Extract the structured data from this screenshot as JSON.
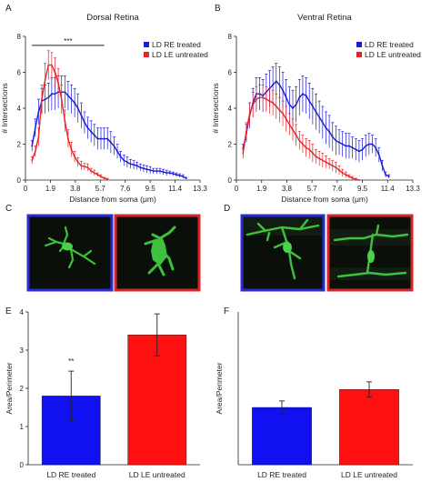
{
  "panels": {
    "A": "A",
    "B": "B",
    "C": "C",
    "D": "D",
    "E": "E",
    "F": "F"
  },
  "colors": {
    "blue": "#1a1adb",
    "red": "#e8242a",
    "blue_bar": "#1010f0",
    "red_bar": "#ff1010",
    "micro_bg": "#0a0f0a",
    "micro_cell": "#3ec23e"
  },
  "chart_data": [
    {
      "id": "A",
      "type": "line",
      "title": "Dorsal Retina",
      "xlabel": "Distance from soma (μm)",
      "ylabel": "# Intersections",
      "xlim": [
        0,
        13.3
      ],
      "ylim": [
        0,
        8
      ],
      "xticks": [
        "0",
        "1.9",
        "3.8",
        "5.7",
        "7.6",
        "9.5",
        "11.4",
        "13.3"
      ],
      "yticks": [
        "0",
        "2",
        "4",
        "6",
        "8"
      ],
      "legend_position": "top-right",
      "significance": {
        "label": "***",
        "x_start": 0.5,
        "x_end": 6.0,
        "y": 7.5
      },
      "series": [
        {
          "name": "LD RE treated",
          "color": "blue",
          "x": [
            0.5,
            0.75,
            1.0,
            1.25,
            1.5,
            1.75,
            2.0,
            2.25,
            2.5,
            2.75,
            3.0,
            3.25,
            3.5,
            3.75,
            4.0,
            4.25,
            4.5,
            4.75,
            5.0,
            5.25,
            5.5,
            5.75,
            6.0,
            6.25,
            6.5,
            6.75,
            7.0,
            7.25,
            7.5,
            7.75,
            8.0,
            8.25,
            8.5,
            8.75,
            9.0,
            9.25,
            9.5,
            9.75,
            10.0,
            10.25,
            10.5,
            10.75,
            11.0,
            11.25,
            11.5,
            11.75,
            12.0,
            12.25
          ],
          "values": [
            1.9,
            2.9,
            3.8,
            4.4,
            4.5,
            4.6,
            4.8,
            4.8,
            4.9,
            4.9,
            4.9,
            4.7,
            4.5,
            4.3,
            4.0,
            3.6,
            3.2,
            2.9,
            2.7,
            2.5,
            2.3,
            2.3,
            2.3,
            2.3,
            2.1,
            1.9,
            1.6,
            1.3,
            1.1,
            1.0,
            0.9,
            0.85,
            0.8,
            0.7,
            0.65,
            0.6,
            0.55,
            0.5,
            0.5,
            0.5,
            0.45,
            0.4,
            0.4,
            0.35,
            0.3,
            0.25,
            0.2,
            0.1
          ],
          "error": [
            0.3,
            0.5,
            0.7,
            0.7,
            0.8,
            0.8,
            0.9,
            0.9,
            0.9,
            0.9,
            0.9,
            0.8,
            0.8,
            0.8,
            0.8,
            0.7,
            0.6,
            0.6,
            0.6,
            0.6,
            0.6,
            0.6,
            0.6,
            0.6,
            0.6,
            0.5,
            0.4,
            0.3,
            0.3,
            0.3,
            0.25,
            0.25,
            0.2,
            0.2,
            0.2,
            0.2,
            0.2,
            0.15,
            0.15,
            0.15,
            0.15,
            0.15,
            0.1,
            0.1,
            0.1,
            0.1,
            0.1,
            0.05
          ]
        },
        {
          "name": "LD LE untreated",
          "color": "red",
          "x": [
            0.5,
            0.75,
            1.0,
            1.25,
            1.5,
            1.75,
            2.0,
            2.25,
            2.5,
            2.75,
            3.0,
            3.25,
            3.5,
            3.75,
            4.0,
            4.25,
            4.5,
            4.75,
            5.0,
            5.25,
            5.5,
            5.75,
            6.0,
            6.25
          ],
          "values": [
            1.1,
            1.6,
            2.4,
            4.5,
            5.6,
            6.4,
            6.4,
            6.0,
            5.4,
            4.5,
            3.3,
            2.3,
            1.7,
            1.3,
            1.0,
            0.8,
            0.75,
            0.7,
            0.5,
            0.4,
            0.3,
            0.2,
            0.1,
            0.05
          ],
          "error": [
            0.2,
            0.3,
            0.5,
            0.8,
            0.9,
            0.8,
            0.7,
            0.8,
            0.8,
            0.8,
            0.6,
            0.5,
            0.4,
            0.3,
            0.25,
            0.25,
            0.2,
            0.2,
            0.15,
            0.15,
            0.1,
            0.1,
            0.05,
            0.05
          ]
        }
      ]
    },
    {
      "id": "B",
      "type": "line",
      "title": "Ventral Retina",
      "xlabel": "Distance from soma (μm)",
      "ylabel": "# Intersections",
      "xlim": [
        0,
        13.3
      ],
      "ylim": [
        0,
        8
      ],
      "xticks": [
        "0",
        "1.9",
        "3.8",
        "5.7",
        "7.6",
        "9.5",
        "11.4",
        "13.3"
      ],
      "yticks": [
        "0",
        "2",
        "4",
        "6",
        "8"
      ],
      "legend_position": "top-right",
      "series": [
        {
          "name": "LD RE treated",
          "color": "blue",
          "x": [
            0.5,
            0.75,
            1.0,
            1.25,
            1.5,
            1.75,
            2.0,
            2.25,
            2.5,
            2.75,
            3.0,
            3.25,
            3.5,
            3.75,
            4.0,
            4.25,
            4.5,
            4.75,
            5.0,
            5.25,
            5.5,
            5.75,
            6.0,
            6.25,
            6.5,
            6.75,
            7.0,
            7.25,
            7.5,
            7.75,
            8.0,
            8.25,
            8.5,
            8.75,
            9.0,
            9.25,
            9.5,
            9.75,
            10.0,
            10.25,
            10.5,
            10.75,
            11.0,
            11.25,
            11.5
          ],
          "values": [
            1.7,
            2.6,
            3.6,
            4.3,
            4.8,
            4.8,
            4.7,
            4.9,
            5.1,
            5.3,
            5.5,
            5.3,
            5.0,
            4.6,
            4.2,
            4.0,
            4.2,
            4.6,
            4.8,
            4.7,
            4.4,
            4.1,
            3.8,
            3.5,
            3.2,
            2.9,
            2.7,
            2.4,
            2.2,
            2.1,
            2.0,
            1.9,
            1.9,
            1.8,
            1.7,
            1.6,
            1.7,
            1.9,
            2.0,
            2.0,
            1.8,
            1.4,
            0.8,
            0.3,
            0.2
          ],
          "error": [
            0.3,
            0.5,
            0.7,
            0.8,
            0.9,
            0.9,
            0.9,
            1.0,
            1.0,
            1.0,
            1.0,
            1.0,
            1.0,
            1.0,
            1.0,
            1.0,
            1.0,
            1.0,
            1.0,
            1.0,
            1.0,
            1.0,
            1.0,
            0.9,
            0.9,
            0.9,
            0.9,
            0.8,
            0.8,
            0.7,
            0.7,
            0.7,
            0.7,
            0.6,
            0.6,
            0.6,
            0.6,
            0.6,
            0.6,
            0.5,
            0.5,
            0.4,
            0.3,
            0.15,
            0.1
          ]
        },
        {
          "name": "LD LE untreated",
          "color": "red",
          "x": [
            0.5,
            0.75,
            1.0,
            1.25,
            1.5,
            1.75,
            2.0,
            2.25,
            2.5,
            2.75,
            3.0,
            3.25,
            3.5,
            3.75,
            4.0,
            4.25,
            4.5,
            4.75,
            5.0,
            5.25,
            5.5,
            5.75,
            6.0,
            6.25,
            6.5,
            6.75,
            7.0,
            7.25,
            7.5,
            7.75,
            8.0,
            8.25,
            8.5,
            8.75,
            9.0,
            9.25
          ],
          "values": [
            1.5,
            2.7,
            3.7,
            4.2,
            4.5,
            4.6,
            4.6,
            4.5,
            4.4,
            4.3,
            4.1,
            3.9,
            3.7,
            3.4,
            3.1,
            2.8,
            2.5,
            2.2,
            2.0,
            1.8,
            1.7,
            1.5,
            1.3,
            1.2,
            1.1,
            1.0,
            0.9,
            0.8,
            0.7,
            0.55,
            0.4,
            0.3,
            0.2,
            0.1,
            0.05,
            0.0
          ],
          "error": [
            0.3,
            0.5,
            0.6,
            0.7,
            0.7,
            0.7,
            0.7,
            0.7,
            0.7,
            0.7,
            0.7,
            0.7,
            0.7,
            0.7,
            0.6,
            0.6,
            0.6,
            0.5,
            0.5,
            0.5,
            0.5,
            0.5,
            0.4,
            0.4,
            0.4,
            0.35,
            0.3,
            0.3,
            0.3,
            0.25,
            0.2,
            0.15,
            0.1,
            0.1,
            0.05,
            0.0
          ]
        }
      ]
    },
    {
      "id": "E",
      "type": "bar",
      "categories": [
        "LD RE treated",
        "LD LE untreated"
      ],
      "values": [
        1.8,
        3.4
      ],
      "error": [
        0.65,
        0.55
      ],
      "colors": [
        "blue_bar",
        "red_bar"
      ],
      "ylabel": "Area/Perimeter",
      "ylim": [
        0,
        4
      ],
      "yticks": [
        "0",
        "1",
        "2",
        "3",
        "4"
      ],
      "significance": {
        "label": "**",
        "category": 0
      }
    },
    {
      "id": "F",
      "type": "bar",
      "categories": [
        "LD RE treated",
        "LD LE untreated"
      ],
      "values": [
        1.5,
        1.97
      ],
      "error": [
        0.17,
        0.2
      ],
      "colors": [
        "blue_bar",
        "red_bar"
      ],
      "ylabel": "Area/Perimeter",
      "ylim": [
        0,
        4
      ]
    }
  ]
}
